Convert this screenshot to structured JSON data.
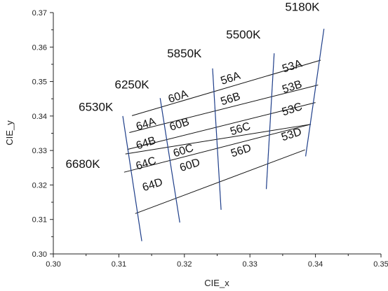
{
  "chart_data": {
    "type": "scatter",
    "xlabel": "CIE_x",
    "ylabel": "CIE_y",
    "xlim": [
      0.3,
      0.35
    ],
    "ylim": [
      0.3,
      0.37
    ],
    "xticks": [
      "0.30",
      "0.31",
      "0.32",
      "0.33",
      "0.34",
      "0.35"
    ],
    "yticks": [
      "0.30",
      "0.31",
      "0.32",
      "0.33",
      "0.34",
      "0.35",
      "0.36",
      "0.37"
    ],
    "grid": false,
    "colors": {
      "cct_lines": "#1f3f8a",
      "bin_lines": "#111111"
    },
    "cct_lines": [
      {
        "label": "6530K",
        "from": [
          0.3135,
          0.3037
        ],
        "to": [
          0.3106,
          0.34
        ],
        "label_at": [
          0.3065,
          0.3415
        ]
      },
      {
        "label": "6250K",
        "from": [
          0.3193,
          0.3091
        ],
        "to": [
          0.3163,
          0.3452
        ],
        "label_at": [
          0.312,
          0.348
        ]
      },
      {
        "label": "5850K",
        "from": [
          0.3256,
          0.3128
        ],
        "to": [
          0.3243,
          0.3538
        ],
        "label_at": [
          0.32,
          0.357
        ]
      },
      {
        "label": "5500K",
        "from": [
          0.3325,
          0.3188
        ],
        "to": [
          0.3337,
          0.3582
        ],
        "label_at": [
          0.329,
          0.3625
        ]
      },
      {
        "label": "5180K",
        "from": [
          0.3385,
          0.3283
        ],
        "to": [
          0.3413,
          0.3653
        ],
        "label_at": [
          0.338,
          0.3705
        ]
      },
      {
        "label": "6680K",
        "from": [
          0.311,
          0.3244
        ],
        "to": [
          0.311,
          0.3244
        ],
        "label_at": [
          0.3045,
          0.325
        ]
      }
    ],
    "bin_lines": [
      [
        [
          0.311,
          0.329
        ],
        [
          0.3393,
          0.3376
        ]
      ],
      [
        [
          0.3113,
          0.3303
        ],
        [
          0.34,
          0.3439
        ]
      ],
      [
        [
          0.3116,
          0.3352
        ],
        [
          0.3404,
          0.349
        ]
      ],
      [
        [
          0.312,
          0.3401
        ],
        [
          0.3408,
          0.3562
        ]
      ],
      [
        [
          0.3125,
          0.3117
        ],
        [
          0.3384,
          0.3302
        ]
      ],
      [
        [
          0.3108,
          0.3237
        ],
        [
          0.3393,
          0.3376
        ]
      ]
    ],
    "bins": [
      {
        "label": "64A",
        "x": 0.3143,
        "y": 0.3367
      },
      {
        "label": "64B",
        "x": 0.3143,
        "y": 0.3312
      },
      {
        "label": "64C",
        "x": 0.3143,
        "y": 0.3253
      },
      {
        "label": "64D",
        "x": 0.3153,
        "y": 0.3191
      },
      {
        "label": "60A",
        "x": 0.3192,
        "y": 0.3447
      },
      {
        "label": "60B",
        "x": 0.3194,
        "y": 0.3366
      },
      {
        "label": "60C",
        "x": 0.32,
        "y": 0.329
      },
      {
        "label": "60D",
        "x": 0.321,
        "y": 0.3248
      },
      {
        "label": "56A",
        "x": 0.3272,
        "y": 0.35
      },
      {
        "label": "56B",
        "x": 0.3272,
        "y": 0.344
      },
      {
        "label": "56C",
        "x": 0.3287,
        "y": 0.3353
      },
      {
        "label": "56D",
        "x": 0.3288,
        "y": 0.329
      },
      {
        "label": "53A",
        "x": 0.3366,
        "y": 0.3535
      },
      {
        "label": "53B",
        "x": 0.3366,
        "y": 0.3475
      },
      {
        "label": "53C",
        "x": 0.3366,
        "y": 0.341
      },
      {
        "label": "53D",
        "x": 0.3365,
        "y": 0.3337
      }
    ]
  }
}
